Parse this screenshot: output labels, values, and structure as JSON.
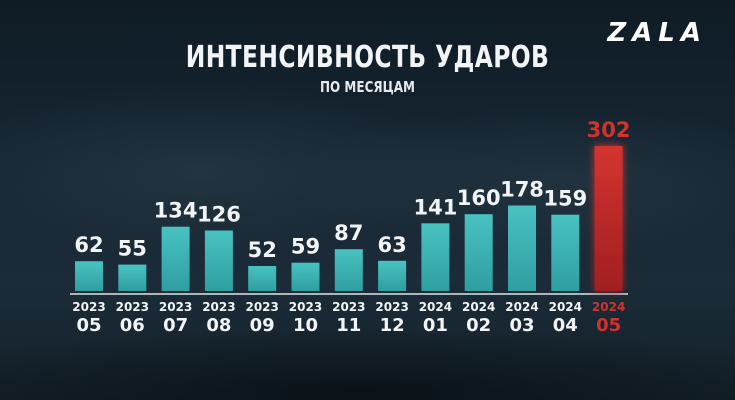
{
  "brand": {
    "logo_text": "ZALA"
  },
  "colors": {
    "bar": "#3fb3b4",
    "bar_highlight": "#c62a2a",
    "text": "#f2f4f5",
    "highlight_text": "#d4312c",
    "axis": "#dfe4e6"
  },
  "chart_data": {
    "type": "bar",
    "title": "ИНТЕНСИВНОСТЬ УДАРОВ",
    "subtitle": "ПО МЕСЯЦАМ",
    "categories": [
      {
        "year": "2023",
        "month": "05"
      },
      {
        "year": "2023",
        "month": "06"
      },
      {
        "year": "2023",
        "month": "07"
      },
      {
        "year": "2023",
        "month": "08"
      },
      {
        "year": "2023",
        "month": "09"
      },
      {
        "year": "2023",
        "month": "10"
      },
      {
        "year": "2023",
        "month": "11"
      },
      {
        "year": "2023",
        "month": "12"
      },
      {
        "year": "2024",
        "month": "01"
      },
      {
        "year": "2024",
        "month": "02"
      },
      {
        "year": "2024",
        "month": "03"
      },
      {
        "year": "2024",
        "month": "04"
      },
      {
        "year": "2024",
        "month": "05"
      }
    ],
    "values": [
      62,
      55,
      134,
      126,
      52,
      59,
      87,
      63,
      141,
      160,
      178,
      159,
      302
    ],
    "highlight_index": 12,
    "ylim": [
      0,
      302
    ],
    "xlabel": "",
    "ylabel": "",
    "grid": false,
    "legend": "none"
  }
}
